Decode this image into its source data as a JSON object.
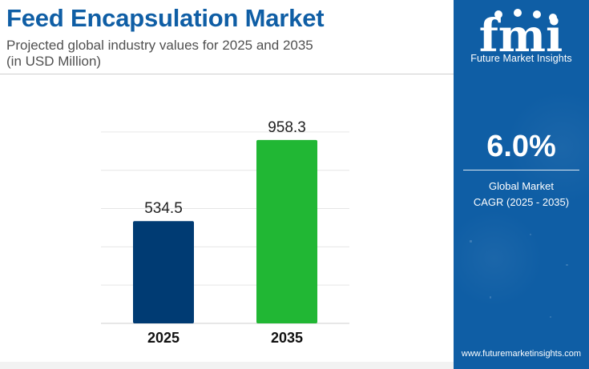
{
  "header": {
    "title": "Feed Encapsulation Market",
    "subtitle_line1": "Projected global industry values for 2025 and 2035",
    "subtitle_line2": "(in USD Million)"
  },
  "chart_data": {
    "type": "bar",
    "categories": [
      "2025",
      "2035"
    ],
    "values": [
      534.5,
      958.3
    ],
    "value_labels": [
      "534.5",
      "958.3"
    ],
    "bar_colors": [
      "#003b73",
      "#21b734"
    ],
    "title": "",
    "xlabel": "",
    "ylabel": "",
    "ylim": [
      0,
      1100
    ],
    "grid": true,
    "legend": "none"
  },
  "sidebar": {
    "logo_letters": "fmi",
    "brand": "Future Market Insights",
    "cagr_value": "6.0%",
    "cagr_label_line1": "Global Market",
    "cagr_label_line2": "CAGR (2025 - 2035)",
    "website": "www.futuremarketinsights.com"
  },
  "colors": {
    "brand_blue": "#0f5ea5",
    "bar_2025": "#003b73",
    "bar_2035": "#21b734",
    "subtitle_gray": "#505050",
    "white": "#ffffff"
  }
}
